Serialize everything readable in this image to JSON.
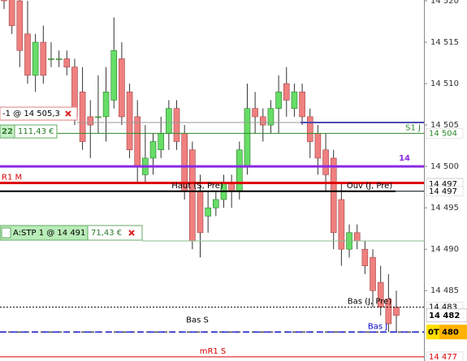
{
  "chart_data": {
    "type": "candlestick",
    "ylim": [
      14476.5,
      14520.1
    ],
    "yticks": [
      {
        "value": 14520,
        "label": "14 520"
      },
      {
        "value": 14515,
        "label": "14 515"
      },
      {
        "value": 14510,
        "label": "14 510"
      },
      {
        "value": 14505,
        "label": "14 505"
      },
      {
        "value": 14500,
        "label": "14 500"
      },
      {
        "value": 14495,
        "label": "14 495"
      },
      {
        "value": 14490,
        "label": "14 490"
      },
      {
        "value": 14485,
        "label": "14 485"
      }
    ],
    "up_color": "#66dd66",
    "down_color": "#f08080",
    "candles": [
      [
        14522,
        14523,
        14519,
        14520
      ],
      [
        14521,
        14522,
        14516,
        14517
      ],
      [
        14520,
        14521,
        14512,
        14514
      ],
      [
        14516,
        14520,
        14510,
        14511
      ],
      [
        14511,
        14516,
        14509,
        14515
      ],
      [
        14515,
        14517,
        14510,
        14511
      ],
      [
        14513,
        14515,
        14512,
        14513
      ],
      [
        14513,
        14514,
        14512,
        14513
      ],
      [
        14513,
        14514,
        14511,
        14512
      ],
      [
        14512,
        14513,
        14505,
        14506
      ],
      [
        14509,
        14512,
        14502,
        14503
      ],
      [
        14506,
        14508,
        14501,
        14505
      ],
      [
        14506,
        14511,
        14504,
        14506
      ],
      [
        14506,
        14512,
        14503,
        14509
      ],
      [
        14508,
        14518,
        14507,
        14514
      ],
      [
        14513,
        14515,
        14505,
        14506
      ],
      [
        14509,
        14510,
        14501,
        14502
      ],
      [
        14506,
        14508,
        14498,
        14500
      ],
      [
        14499,
        14505,
        14498,
        14501
      ],
      [
        14501,
        14504,
        14499,
        14503
      ],
      [
        14502,
        14506,
        14501,
        14504
      ],
      [
        14504,
        14508,
        14502,
        14507
      ],
      [
        14507,
        14508,
        14502,
        14503
      ],
      [
        14504,
        14505,
        14496,
        14497
      ],
      [
        14502,
        14503,
        14490,
        14491
      ],
      [
        14497,
        14499,
        14489,
        14492
      ],
      [
        14494,
        14497,
        14492,
        14495
      ],
      [
        14495,
        14497,
        14494,
        14496
      ],
      [
        14496,
        14499,
        14495,
        14498
      ],
      [
        14498,
        14499,
        14495,
        14497
      ],
      [
        14497,
        14503,
        14496,
        14502
      ],
      [
        14500,
        14510,
        14499,
        14507
      ],
      [
        14507,
        14509,
        14504,
        14506
      ],
      [
        14506,
        14507,
        14503,
        14505
      ],
      [
        14505,
        14508,
        14504,
        14507
      ],
      [
        14507,
        14511,
        14504,
        14509
      ],
      [
        14510,
        14512,
        14506,
        14508
      ],
      [
        14507,
        14510,
        14506,
        14509
      ],
      [
        14509,
        14510,
        14505,
        14506
      ],
      [
        14506,
        14507,
        14501,
        14503
      ],
      [
        14504,
        14505,
        14499,
        14501
      ],
      [
        14502,
        14504,
        14497,
        14499
      ],
      [
        14501,
        14502,
        14490,
        14492
      ],
      [
        14496,
        14498,
        14488,
        14490
      ],
      [
        14490,
        14493,
        14489,
        14492
      ],
      [
        14492,
        14493,
        14490,
        14491
      ],
      [
        14490,
        14491,
        14487,
        14488
      ],
      [
        14489,
        14490,
        14483,
        14485
      ],
      [
        14486,
        14488,
        14482,
        14483
      ],
      [
        14484,
        14487,
        14480,
        14481
      ],
      [
        14483,
        14485,
        14480,
        14482
      ]
    ],
    "levels": [
      {
        "value": 14505.3,
        "color": "#0000cc"
      },
      {
        "name": "S1 J",
        "value": 14504,
        "color": "#2a8a2a",
        "label": "14 504"
      },
      {
        "name": "14",
        "value": 14500,
        "color": "#8a2be2"
      },
      {
        "name": "R1 M",
        "value": 14498,
        "color": "#dd0000",
        "label": "14 498"
      },
      {
        "name": "Haut (S, Pre)",
        "value": 14497,
        "color": "#000000",
        "label": "14 497"
      },
      {
        "name": "Ouv (J, Pre)",
        "value": 14497,
        "color": "#000000",
        "label": "14 497"
      },
      {
        "name": "Bas (J, Pre)",
        "value": 14483,
        "color": "#000000",
        "label": "14 483"
      },
      {
        "name": "Bas S",
        "value": 14480,
        "color": "#000000"
      },
      {
        "name": "Bas J",
        "value": 14480,
        "color": "#0000cc",
        "label": "480",
        "tag": "0T"
      },
      {
        "name": "mR1 S",
        "value": 14477,
        "color": "#dd0000",
        "label": "14 477"
      }
    ],
    "last": {
      "value": 14482,
      "label": "14 482"
    }
  },
  "orders": [
    {
      "text": "-1 @ 14 505,3",
      "value": 14505.3,
      "qty": "22",
      "pnl": "111,43 €"
    },
    {
      "text": "A:STP 1 @ 14 491",
      "value": 14491,
      "pnl": "71,43 €"
    }
  ]
}
